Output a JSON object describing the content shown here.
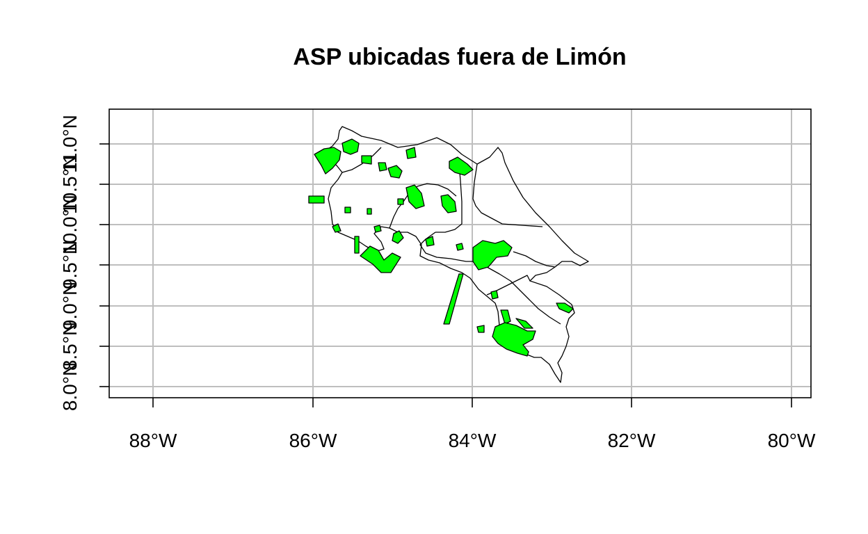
{
  "title": "ASP ubicadas fuera de Limón",
  "colors": {
    "asp_fill": "#00ff00",
    "outline": "#000000",
    "grid": "#bebebe",
    "background": "#ffffff"
  },
  "axes": {
    "x_ticks": [
      "88°W",
      "86°W",
      "84°W",
      "82°W",
      "80°W"
    ],
    "y_ticks": [
      "8.0°N",
      "8.5°N",
      "9.0°N",
      "9.5°N",
      "10.0°N",
      "10.5°N",
      "11.0°N"
    ]
  },
  "chart_data": {
    "type": "map",
    "title": "ASP ubicadas fuera de Limón",
    "xlim": [
      -88.5,
      -79.8
    ],
    "ylim": [
      7.9,
      11.5
    ],
    "x_tick_values": [
      -88,
      -86,
      -84,
      -82,
      -80
    ],
    "y_tick_values": [
      8.0,
      8.5,
      9.0,
      9.5,
      10.0,
      10.5,
      11.0
    ],
    "grid": true,
    "legend": "none"
  }
}
